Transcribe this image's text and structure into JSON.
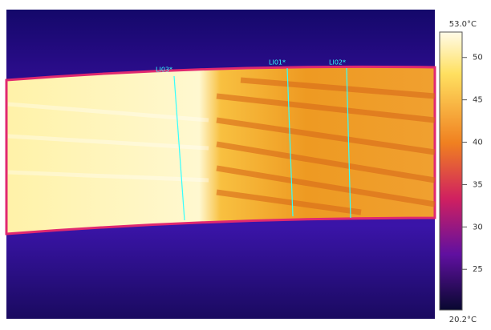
{
  "image": {
    "lines": [
      {
        "label": "LI03*"
      },
      {
        "label": "LI01*"
      },
      {
        "label": "LI02*"
      }
    ]
  },
  "colorbar": {
    "ends": [
      {
        "value": 53.0,
        "label": "53.0°C"
      },
      {
        "value": 20.2,
        "label": "20.2°C"
      }
    ],
    "ticks": [
      50,
      45,
      40,
      35,
      30,
      25
    ]
  }
}
